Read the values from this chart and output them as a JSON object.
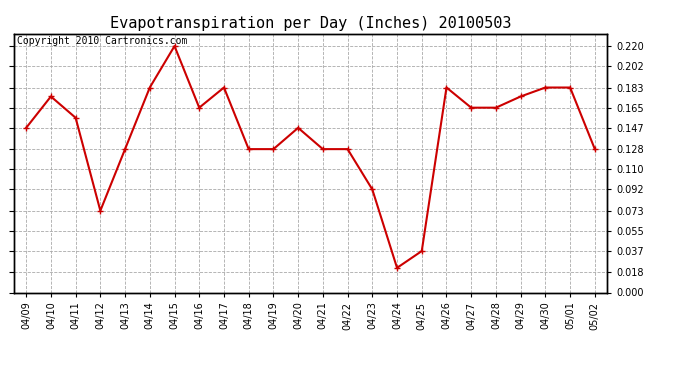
{
  "title": "Evapotranspiration per Day (Inches) 20100503",
  "copyright_text": "Copyright 2010 Cartronics.com",
  "x_labels": [
    "04/09",
    "04/10",
    "04/11",
    "04/12",
    "04/13",
    "04/14",
    "04/15",
    "04/16",
    "04/17",
    "04/18",
    "04/19",
    "04/20",
    "04/21",
    "04/22",
    "04/23",
    "04/24",
    "04/25",
    "04/26",
    "04/27",
    "04/28",
    "04/29",
    "04/30",
    "05/01",
    "05/02"
  ],
  "y_values": [
    0.147,
    0.175,
    0.156,
    0.073,
    0.128,
    0.183,
    0.22,
    0.165,
    0.183,
    0.128,
    0.128,
    0.147,
    0.128,
    0.128,
    0.092,
    0.022,
    0.037,
    0.183,
    0.165,
    0.165,
    0.175,
    0.183,
    0.183,
    0.128
  ],
  "line_color": "#cc0000",
  "marker": "+",
  "marker_size": 5,
  "line_width": 1.5,
  "ylim": [
    0.0,
    0.231
  ],
  "yticks": [
    0.0,
    0.018,
    0.037,
    0.055,
    0.073,
    0.092,
    0.11,
    0.128,
    0.147,
    0.165,
    0.183,
    0.202,
    0.22
  ],
  "grid_color": "#aaaaaa",
  "grid_linestyle": "--",
  "background_color": "#ffffff",
  "title_fontsize": 11,
  "copyright_fontsize": 7,
  "tick_fontsize": 7,
  "ylabel_fontsize": 7
}
